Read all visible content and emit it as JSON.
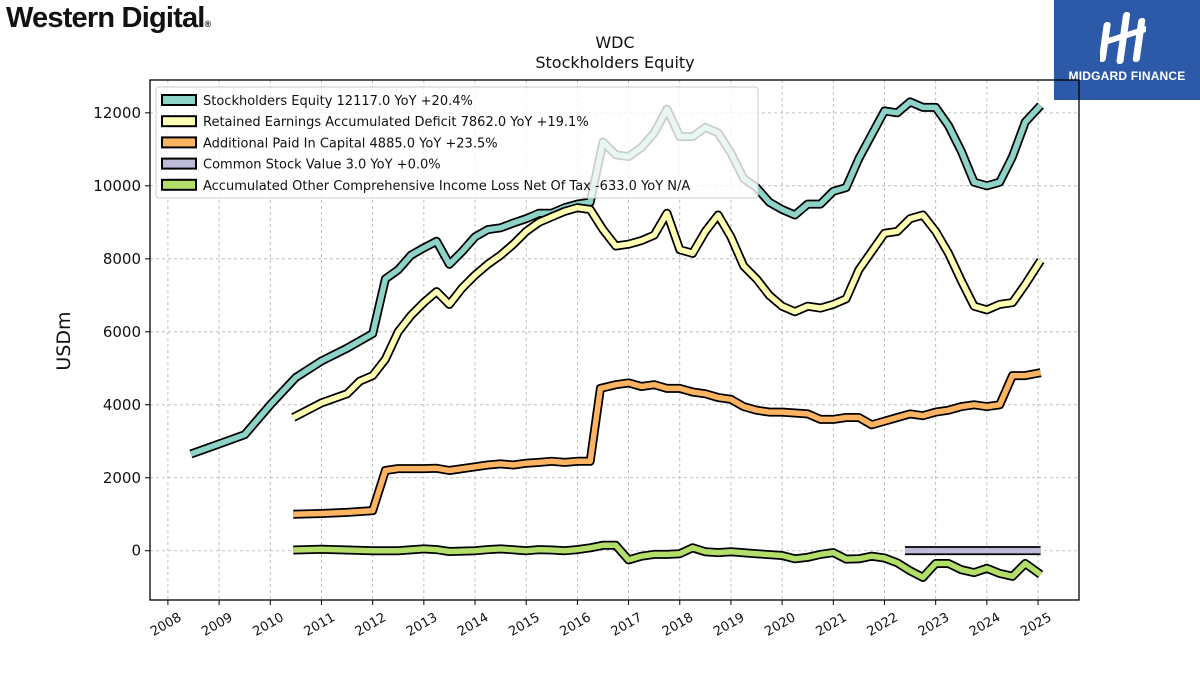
{
  "brand": {
    "left_logo": "Western Digital",
    "left_logo_mark": "®",
    "right_logo": "MIDGARD FINANCE"
  },
  "chart_data": {
    "type": "line",
    "title": "WDC",
    "subtitle": "Stockholders  Equity",
    "ylabel": "USDm",
    "xlabel": "",
    "ylim": [
      -1350,
      12900
    ],
    "xlim": [
      2007.65,
      2025.8
    ],
    "yticks": [
      0,
      2000,
      4000,
      6000,
      8000,
      10000,
      12000
    ],
    "xticks": [
      "2008",
      "2009",
      "2010",
      "2011",
      "2012",
      "2013",
      "2014",
      "2015",
      "2016",
      "2017",
      "2018",
      "2019",
      "2020",
      "2021",
      "2022",
      "2023",
      "2024",
      "2025"
    ],
    "grid": true,
    "legend_position": "upper-left",
    "series": [
      {
        "name": "Stockholders Equity  12117.0 YoY +20.4%",
        "color": "#8dd3c7",
        "points": [
          [
            2008.45,
            2650
          ],
          [
            2008.95,
            2900
          ],
          [
            2009.5,
            3180
          ],
          [
            2010.0,
            4000
          ],
          [
            2010.5,
            4750
          ],
          [
            2011.0,
            5200
          ],
          [
            2011.5,
            5550
          ],
          [
            2012.0,
            5950
          ],
          [
            2012.25,
            7450
          ],
          [
            2012.5,
            7700
          ],
          [
            2012.75,
            8100
          ],
          [
            2013.0,
            8300
          ],
          [
            2013.25,
            8480
          ],
          [
            2013.5,
            7850
          ],
          [
            2013.75,
            8200
          ],
          [
            2014.0,
            8600
          ],
          [
            2014.25,
            8800
          ],
          [
            2014.5,
            8850
          ],
          [
            2014.75,
            8980
          ],
          [
            2015.0,
            9100
          ],
          [
            2015.25,
            9250
          ],
          [
            2015.5,
            9250
          ],
          [
            2015.75,
            9400
          ],
          [
            2016.0,
            9500
          ],
          [
            2016.25,
            9550
          ],
          [
            2016.5,
            11200
          ],
          [
            2016.75,
            10850
          ],
          [
            2017.0,
            10800
          ],
          [
            2017.25,
            11050
          ],
          [
            2017.5,
            11450
          ],
          [
            2017.75,
            12100
          ],
          [
            2018.0,
            11350
          ],
          [
            2018.25,
            11350
          ],
          [
            2018.5,
            11600
          ],
          [
            2018.75,
            11450
          ],
          [
            2019.0,
            10900
          ],
          [
            2019.25,
            10200
          ],
          [
            2019.5,
            9950
          ],
          [
            2019.75,
            9550
          ],
          [
            2020.0,
            9350
          ],
          [
            2020.25,
            9200
          ],
          [
            2020.5,
            9500
          ],
          [
            2020.75,
            9500
          ],
          [
            2021.0,
            9850
          ],
          [
            2021.25,
            9950
          ],
          [
            2021.5,
            10750
          ],
          [
            2021.75,
            11400
          ],
          [
            2022.0,
            12050
          ],
          [
            2022.25,
            12000
          ],
          [
            2022.5,
            12300
          ],
          [
            2022.75,
            12150
          ],
          [
            2023.0,
            12150
          ],
          [
            2023.25,
            11650
          ],
          [
            2023.5,
            10950
          ],
          [
            2023.75,
            10100
          ],
          [
            2024.0,
            10000
          ],
          [
            2024.25,
            10100
          ],
          [
            2024.5,
            10800
          ],
          [
            2024.75,
            11750
          ],
          [
            2025.05,
            12200
          ]
        ]
      },
      {
        "name": "Retained Earnings Accumulated Deficit  7862.0 YoY +19.1%",
        "color": "#ffffb3",
        "points": [
          [
            2010.45,
            3650
          ],
          [
            2011.0,
            4050
          ],
          [
            2011.5,
            4300
          ],
          [
            2011.75,
            4650
          ],
          [
            2012.0,
            4800
          ],
          [
            2012.25,
            5250
          ],
          [
            2012.5,
            6000
          ],
          [
            2012.75,
            6450
          ],
          [
            2013.0,
            6800
          ],
          [
            2013.25,
            7100
          ],
          [
            2013.5,
            6750
          ],
          [
            2013.75,
            7200
          ],
          [
            2014.0,
            7550
          ],
          [
            2014.25,
            7850
          ],
          [
            2014.5,
            8100
          ],
          [
            2014.75,
            8400
          ],
          [
            2015.0,
            8750
          ],
          [
            2015.25,
            9000
          ],
          [
            2015.5,
            9150
          ],
          [
            2015.75,
            9300
          ],
          [
            2016.0,
            9400
          ],
          [
            2016.25,
            9350
          ],
          [
            2016.5,
            8800
          ],
          [
            2016.75,
            8350
          ],
          [
            2017.0,
            8400
          ],
          [
            2017.25,
            8500
          ],
          [
            2017.5,
            8650
          ],
          [
            2017.75,
            9250
          ],
          [
            2018.0,
            8250
          ],
          [
            2018.25,
            8150
          ],
          [
            2018.5,
            8750
          ],
          [
            2018.75,
            9200
          ],
          [
            2019.0,
            8600
          ],
          [
            2019.25,
            7800
          ],
          [
            2019.5,
            7450
          ],
          [
            2019.75,
            7000
          ],
          [
            2020.0,
            6700
          ],
          [
            2020.25,
            6550
          ],
          [
            2020.5,
            6700
          ],
          [
            2020.75,
            6650
          ],
          [
            2021.0,
            6750
          ],
          [
            2021.25,
            6900
          ],
          [
            2021.5,
            7700
          ],
          [
            2021.75,
            8200
          ],
          [
            2022.0,
            8700
          ],
          [
            2022.25,
            8750
          ],
          [
            2022.5,
            9100
          ],
          [
            2022.75,
            9200
          ],
          [
            2023.0,
            8750
          ],
          [
            2023.25,
            8150
          ],
          [
            2023.5,
            7400
          ],
          [
            2023.75,
            6700
          ],
          [
            2024.0,
            6600
          ],
          [
            2024.25,
            6750
          ],
          [
            2024.5,
            6800
          ],
          [
            2024.75,
            7300
          ],
          [
            2025.05,
            7950
          ]
        ]
      },
      {
        "name": "Additional Paid In Capital  4885.0 YoY +23.5%",
        "color": "#fdb462",
        "points": [
          [
            2010.45,
            1000
          ],
          [
            2011.0,
            1020
          ],
          [
            2011.5,
            1050
          ],
          [
            2012.0,
            1100
          ],
          [
            2012.25,
            2200
          ],
          [
            2012.5,
            2250
          ],
          [
            2013.0,
            2250
          ],
          [
            2013.25,
            2260
          ],
          [
            2013.5,
            2200
          ],
          [
            2014.0,
            2300
          ],
          [
            2014.25,
            2350
          ],
          [
            2014.5,
            2380
          ],
          [
            2014.75,
            2350
          ],
          [
            2015.0,
            2400
          ],
          [
            2015.25,
            2420
          ],
          [
            2015.5,
            2450
          ],
          [
            2015.75,
            2420
          ],
          [
            2016.0,
            2450
          ],
          [
            2016.25,
            2450
          ],
          [
            2016.45,
            4450
          ],
          [
            2016.75,
            4550
          ],
          [
            2017.0,
            4600
          ],
          [
            2017.25,
            4500
          ],
          [
            2017.5,
            4550
          ],
          [
            2017.75,
            4450
          ],
          [
            2018.0,
            4450
          ],
          [
            2018.25,
            4350
          ],
          [
            2018.5,
            4300
          ],
          [
            2018.75,
            4200
          ],
          [
            2019.0,
            4150
          ],
          [
            2019.25,
            3950
          ],
          [
            2019.5,
            3850
          ],
          [
            2019.75,
            3800
          ],
          [
            2020.0,
            3800
          ],
          [
            2020.5,
            3750
          ],
          [
            2020.75,
            3600
          ],
          [
            2021.0,
            3600
          ],
          [
            2021.25,
            3650
          ],
          [
            2021.5,
            3650
          ],
          [
            2021.75,
            3450
          ],
          [
            2022.0,
            3550
          ],
          [
            2022.25,
            3650
          ],
          [
            2022.5,
            3750
          ],
          [
            2022.75,
            3700
          ],
          [
            2023.0,
            3800
          ],
          [
            2023.25,
            3850
          ],
          [
            2023.5,
            3950
          ],
          [
            2023.75,
            4000
          ],
          [
            2024.0,
            3950
          ],
          [
            2024.25,
            4000
          ],
          [
            2024.5,
            4800
          ],
          [
            2024.75,
            4800
          ],
          [
            2025.05,
            4880
          ]
        ]
      },
      {
        "name": "Common Stock Value  3.0 YoY +0.0%",
        "color": "#bebada",
        "points": [
          [
            2022.4,
            3
          ],
          [
            2025.05,
            3
          ]
        ]
      },
      {
        "name": "Accumulated Other Comprehensive Income Loss Net Of Tax  -633.0 YoY N/A",
        "color": "#b3de69",
        "points": [
          [
            2010.45,
            20
          ],
          [
            2011.0,
            40
          ],
          [
            2011.5,
            20
          ],
          [
            2012.0,
            0
          ],
          [
            2012.5,
            0
          ],
          [
            2013.0,
            50
          ],
          [
            2013.25,
            30
          ],
          [
            2013.5,
            -20
          ],
          [
            2014.0,
            0
          ],
          [
            2014.25,
            30
          ],
          [
            2014.5,
            50
          ],
          [
            2015.0,
            0
          ],
          [
            2015.25,
            30
          ],
          [
            2015.5,
            20
          ],
          [
            2015.75,
            0
          ],
          [
            2016.0,
            30
          ],
          [
            2016.25,
            80
          ],
          [
            2016.5,
            150
          ],
          [
            2016.75,
            150
          ],
          [
            2017.0,
            -250
          ],
          [
            2017.25,
            -150
          ],
          [
            2017.5,
            -100
          ],
          [
            2017.75,
            -100
          ],
          [
            2018.0,
            -80
          ],
          [
            2018.25,
            80
          ],
          [
            2018.5,
            -30
          ],
          [
            2018.75,
            -50
          ],
          [
            2019.0,
            -30
          ],
          [
            2019.5,
            -80
          ],
          [
            2020.0,
            -130
          ],
          [
            2020.25,
            -220
          ],
          [
            2020.5,
            -180
          ],
          [
            2020.75,
            -100
          ],
          [
            2021.0,
            -50
          ],
          [
            2021.25,
            -230
          ],
          [
            2021.5,
            -220
          ],
          [
            2021.75,
            -150
          ],
          [
            2022.0,
            -200
          ],
          [
            2022.25,
            -330
          ],
          [
            2022.5,
            -550
          ],
          [
            2022.75,
            -730
          ],
          [
            2023.0,
            -350
          ],
          [
            2023.25,
            -350
          ],
          [
            2023.5,
            -520
          ],
          [
            2023.75,
            -600
          ],
          [
            2024.0,
            -480
          ],
          [
            2024.25,
            -620
          ],
          [
            2024.5,
            -700
          ],
          [
            2024.75,
            -350
          ],
          [
            2025.05,
            -650
          ]
        ]
      }
    ]
  }
}
